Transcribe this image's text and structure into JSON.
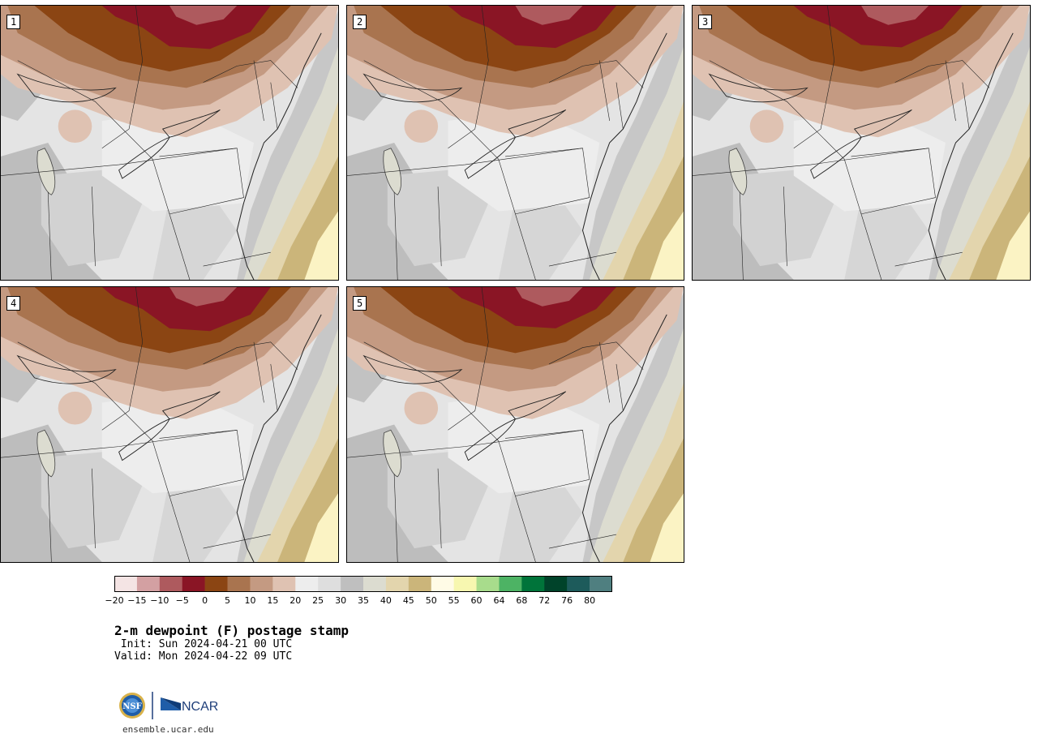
{
  "figure": {
    "title": "2-m dewpoint (F) postage stamp",
    "init": " Init: Sun 2024-04-21 00 UTC",
    "valid": "Valid: Mon 2024-04-22 09 UTC",
    "footer": "ensemble.ucar.edu",
    "logo_text": "NCAR",
    "seal_text": "NSF"
  },
  "members": [
    {
      "label": "1",
      "north_cold": 0.95
    },
    {
      "label": "2",
      "north_cold": 0.85
    },
    {
      "label": "3",
      "north_cold": 0.8
    },
    {
      "label": "4",
      "north_cold": 1.0
    },
    {
      "label": "5",
      "north_cold": 0.75
    }
  ],
  "colorbar": {
    "ticks": [
      "−20",
      "−15",
      "−10",
      "−5",
      "0",
      "5",
      "10",
      "15",
      "20",
      "25",
      "30",
      "35",
      "40",
      "45",
      "50",
      "55",
      "60",
      "64",
      "68",
      "72",
      "76",
      "80"
    ],
    "colors": [
      "#f4e4e4",
      "#d3a0a2",
      "#ae5a5e",
      "#8a1525",
      "#8b4513",
      "#a9744f",
      "#c49a82",
      "#dfc2b2",
      "#ededed",
      "#dedede",
      "#bfbfbf",
      "#dcdcd0",
      "#e3d5ad",
      "#cbb57a",
      "#fffbe6",
      "#f7f7b0",
      "#a8dc8c",
      "#4db364",
      "#00743a",
      "#00432a",
      "#1d5b5b",
      "#4f7f80"
    ]
  }
}
